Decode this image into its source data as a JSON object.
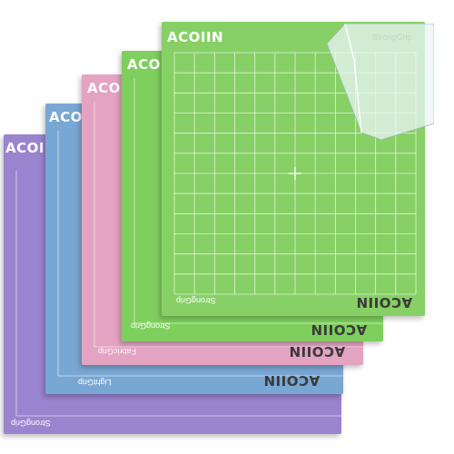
{
  "brand": {
    "logo_text": "ACOIIN",
    "logo_text_rotated": "ACOIIN"
  },
  "mats": [
    {
      "id": "purple",
      "color": "#9a84d0",
      "grip_label": "StrongGrip"
    },
    {
      "id": "blue",
      "color": "#79a7d3",
      "grip_label": "LightGrip"
    },
    {
      "id": "pink",
      "color": "#e3a3c1",
      "grip_label": "FabricGrip"
    },
    {
      "id": "green-back",
      "color": "#7fcf5e",
      "grip_label": "StrongGrip"
    },
    {
      "id": "green-front",
      "color": "#86d065",
      "grip_label": "StrongGrip"
    }
  ]
}
